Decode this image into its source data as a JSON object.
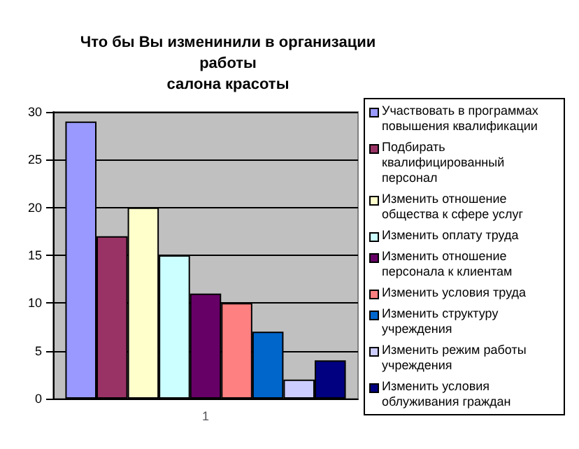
{
  "chart_data": {
    "type": "bar",
    "title": "Что бы Вы изменинили в организации\nработы\nсалона красоты",
    "categories": [
      "1"
    ],
    "series": [
      {
        "name": "Участвовать в программах повышения квалификации",
        "color": "#9999ff",
        "values": [
          29
        ]
      },
      {
        "name": "Подбирать квалифицированный персонал",
        "color": "#993366",
        "values": [
          17
        ]
      },
      {
        "name": "Изменить отношение общества к сфере услуг",
        "color": "#ffffcc",
        "values": [
          20
        ]
      },
      {
        "name": "Изменить оплату труда",
        "color": "#ccffff",
        "values": [
          15
        ]
      },
      {
        "name": "Изменить отношение персонала к клиентам",
        "color": "#660066",
        "values": [
          11
        ]
      },
      {
        "name": "Изменить условия труда",
        "color": "#ff8080",
        "values": [
          10
        ]
      },
      {
        "name": "Изменить структуру учреждения",
        "color": "#0066cc",
        "values": [
          7
        ]
      },
      {
        "name": "Изменить режим работы учреждения",
        "color": "#ccccff",
        "values": [
          2
        ]
      },
      {
        "name": "Изменить условия облуживания граждан",
        "color": "#000080",
        "values": [
          4
        ]
      }
    ],
    "ylim": [
      0,
      30
    ],
    "yticks": [
      0,
      5,
      10,
      15,
      20,
      25,
      30
    ],
    "grid": "y",
    "legend": "right"
  }
}
